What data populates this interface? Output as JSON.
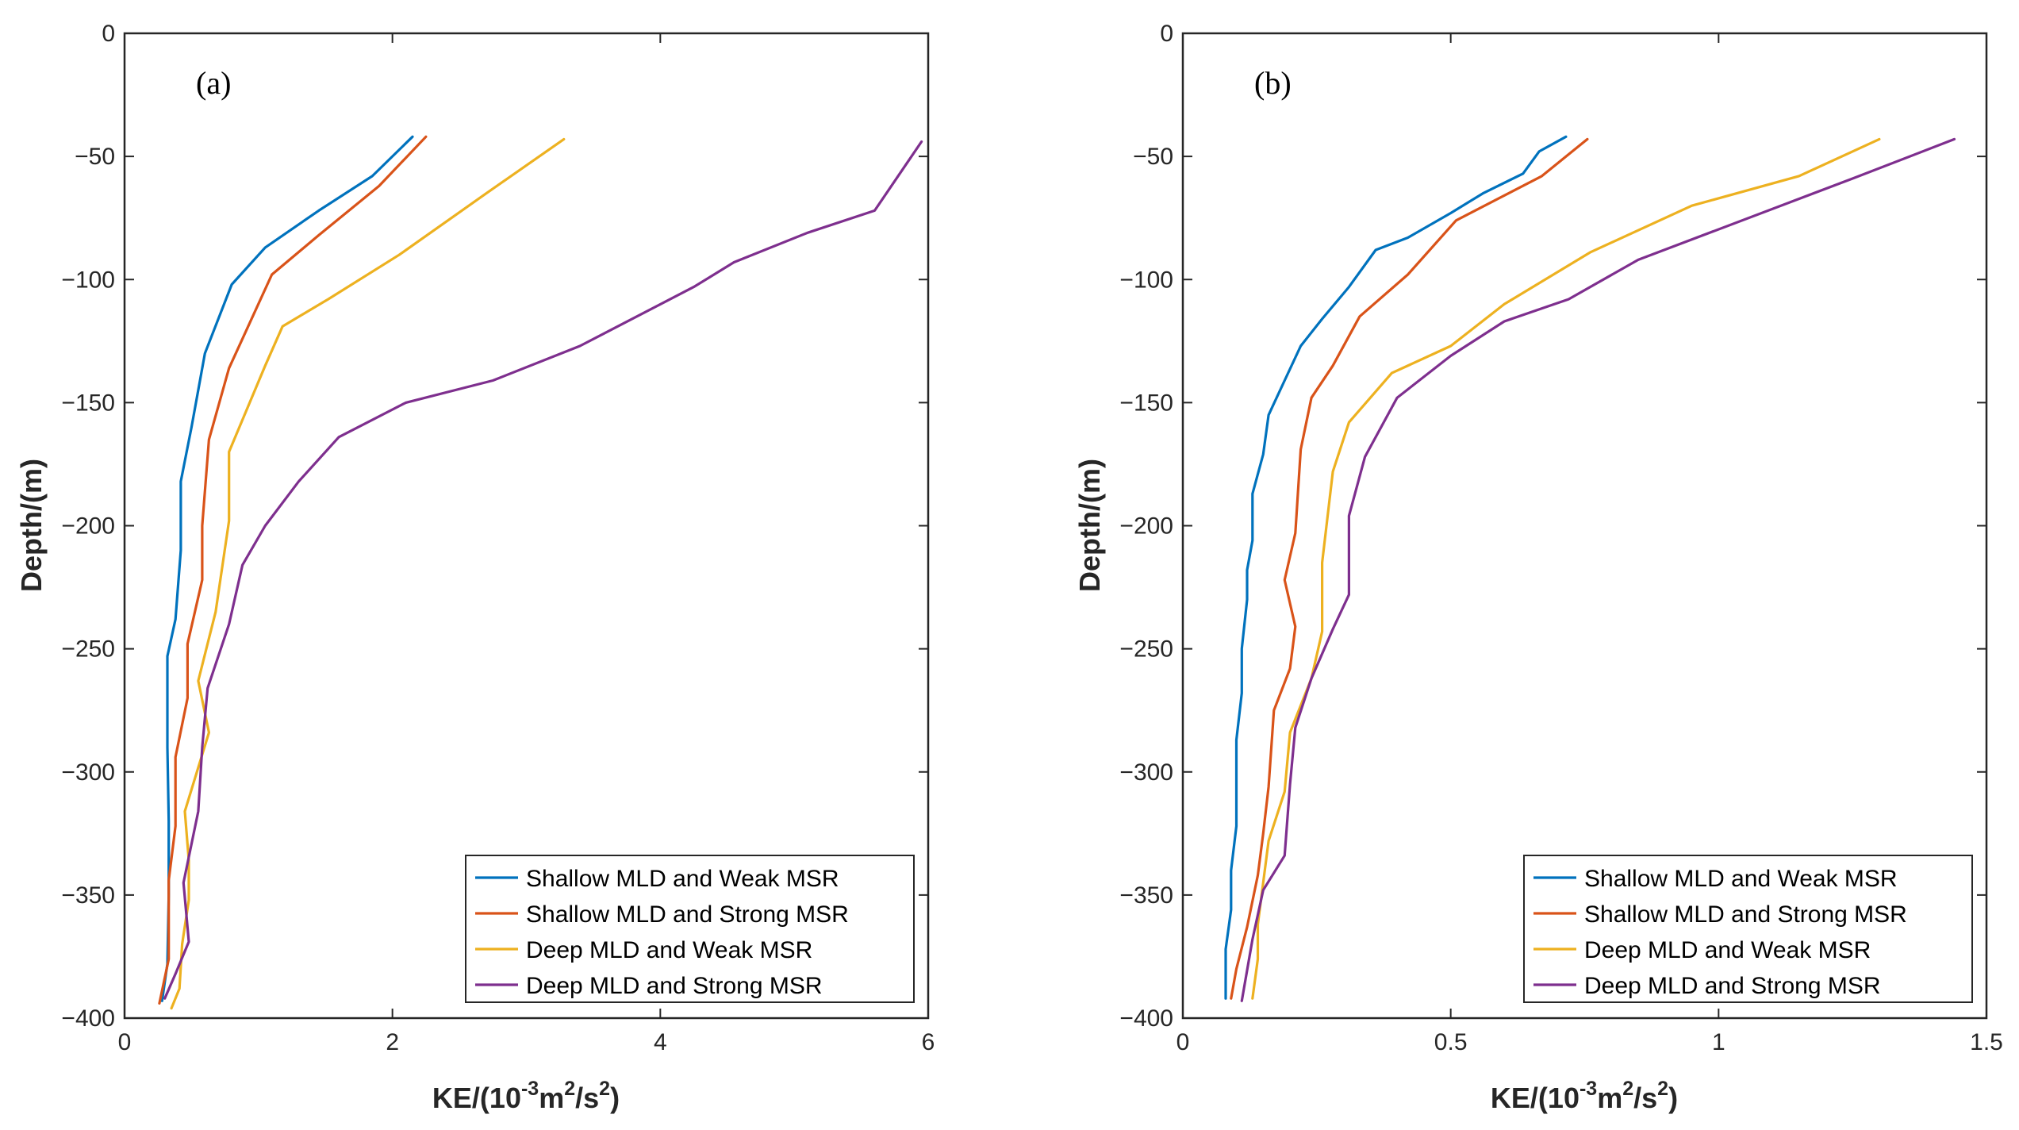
{
  "chart_data": [
    {
      "type": "line",
      "panel_label": "(a)",
      "xlabel": {
        "base": "KE/(10",
        "exp1": "-3",
        "mid": "m",
        "exp2": "2",
        "mid2": "/s",
        "exp3": "2",
        "end": ")"
      },
      "ylabel": "Depth/(m)",
      "xlim": [
        0,
        6
      ],
      "ylim": [
        -400,
        0
      ],
      "xticks": [
        0,
        2,
        4,
        6
      ],
      "xtick_labels": [
        "0",
        "2",
        "4",
        "6"
      ],
      "yticks": [
        0,
        -50,
        -100,
        -150,
        -200,
        -250,
        -300,
        -350,
        -400
      ],
      "ytick_labels": [
        "0",
        "−50",
        "−100",
        "−150",
        "−200",
        "−250",
        "−300",
        "−350",
        "−400"
      ],
      "legend_position": "bottom-right",
      "series": [
        {
          "name": "Shallow MLD and Weak MSR",
          "color": "#0072BD",
          "points": [
            [
              2.15,
              -42
            ],
            [
              1.85,
              -58
            ],
            [
              1.45,
              -72
            ],
            [
              1.05,
              -87
            ],
            [
              0.8,
              -102
            ],
            [
              0.6,
              -130
            ],
            [
              0.5,
              -160
            ],
            [
              0.42,
              -182
            ],
            [
              0.42,
              -210
            ],
            [
              0.38,
              -238
            ],
            [
              0.32,
              -253
            ],
            [
              0.32,
              -290
            ],
            [
              0.33,
              -320
            ],
            [
              0.33,
              -350
            ],
            [
              0.32,
              -378
            ],
            [
              0.28,
              -393
            ]
          ]
        },
        {
          "name": "Shallow MLD and Strong MSR",
          "color": "#D95319",
          "points": [
            [
              2.25,
              -42
            ],
            [
              1.9,
              -62
            ],
            [
              1.45,
              -82
            ],
            [
              1.1,
              -98
            ],
            [
              0.78,
              -136
            ],
            [
              0.63,
              -165
            ],
            [
              0.58,
              -200
            ],
            [
              0.58,
              -222
            ],
            [
              0.47,
              -248
            ],
            [
              0.47,
              -270
            ],
            [
              0.38,
              -294
            ],
            [
              0.38,
              -322
            ],
            [
              0.33,
              -344
            ],
            [
              0.33,
              -376
            ],
            [
              0.26,
              -394
            ]
          ]
        },
        {
          "name": "Deep MLD and Weak MSR",
          "color": "#EDB120",
          "points": [
            [
              3.28,
              -43
            ],
            [
              2.7,
              -65
            ],
            [
              2.05,
              -90
            ],
            [
              1.52,
              -108
            ],
            [
              1.18,
              -119
            ],
            [
              1.05,
              -135
            ],
            [
              0.78,
              -170
            ],
            [
              0.78,
              -198
            ],
            [
              0.68,
              -235
            ],
            [
              0.55,
              -263
            ],
            [
              0.63,
              -284
            ],
            [
              0.45,
              -316
            ],
            [
              0.48,
              -336
            ],
            [
              0.48,
              -352
            ],
            [
              0.43,
              -370
            ],
            [
              0.41,
              -388
            ],
            [
              0.35,
              -396
            ]
          ]
        },
        {
          "name": "Deep MLD and Strong MSR",
          "color": "#7E2F8E",
          "points": [
            [
              5.95,
              -44
            ],
            [
              5.6,
              -72
            ],
            [
              5.1,
              -81
            ],
            [
              4.55,
              -93
            ],
            [
              4.25,
              -103
            ],
            [
              3.4,
              -127
            ],
            [
              2.75,
              -141
            ],
            [
              2.1,
              -150
            ],
            [
              1.6,
              -164
            ],
            [
              1.3,
              -182
            ],
            [
              1.05,
              -200
            ],
            [
              0.88,
              -216
            ],
            [
              0.78,
              -240
            ],
            [
              0.62,
              -266
            ],
            [
              0.58,
              -290
            ],
            [
              0.55,
              -316
            ],
            [
              0.44,
              -345
            ],
            [
              0.48,
              -369
            ],
            [
              0.38,
              -382
            ],
            [
              0.3,
              -392
            ]
          ]
        }
      ]
    },
    {
      "type": "line",
      "panel_label": "(b)",
      "xlabel": {
        "base": "KE/(10",
        "exp1": "-3",
        "mid": "m",
        "exp2": "2",
        "mid2": "/s",
        "exp3": "2",
        "end": ")"
      },
      "ylabel": "Depth/(m)",
      "xlim": [
        0,
        1.5
      ],
      "ylim": [
        -400,
        0
      ],
      "xticks": [
        0,
        0.5,
        1,
        1.5
      ],
      "xtick_labels": [
        "0",
        "0.5",
        "1",
        "1.5"
      ],
      "yticks": [
        0,
        -50,
        -100,
        -150,
        -200,
        -250,
        -300,
        -350,
        -400
      ],
      "ytick_labels": [
        "0",
        "−50",
        "−100",
        "−150",
        "−200",
        "−250",
        "−300",
        "−350",
        "−400"
      ],
      "legend_position": "bottom-right",
      "series": [
        {
          "name": "Shallow MLD and Weak MSR",
          "color": "#0072BD",
          "points": [
            [
              0.715,
              -42
            ],
            [
              0.665,
              -48
            ],
            [
              0.635,
              -57
            ],
            [
              0.56,
              -65
            ],
            [
              0.5,
              -73
            ],
            [
              0.42,
              -83
            ],
            [
              0.36,
              -88
            ],
            [
              0.31,
              -103
            ],
            [
              0.26,
              -116
            ],
            [
              0.22,
              -127
            ],
            [
              0.19,
              -141
            ],
            [
              0.16,
              -155
            ],
            [
              0.15,
              -171
            ],
            [
              0.13,
              -187
            ],
            [
              0.13,
              -206
            ],
            [
              0.12,
              -218
            ],
            [
              0.12,
              -230
            ],
            [
              0.11,
              -250
            ],
            [
              0.11,
              -268
            ],
            [
              0.1,
              -287
            ],
            [
              0.1,
              -322
            ],
            [
              0.09,
              -340
            ],
            [
              0.09,
              -356
            ],
            [
              0.08,
              -372
            ],
            [
              0.08,
              -392
            ]
          ]
        },
        {
          "name": "Shallow MLD and Strong MSR",
          "color": "#D95319",
          "points": [
            [
              0.755,
              -43
            ],
            [
              0.67,
              -58
            ],
            [
              0.51,
              -76
            ],
            [
              0.42,
              -98
            ],
            [
              0.33,
              -115
            ],
            [
              0.28,
              -135
            ],
            [
              0.24,
              -148
            ],
            [
              0.22,
              -169
            ],
            [
              0.21,
              -203
            ],
            [
              0.19,
              -222
            ],
            [
              0.21,
              -241
            ],
            [
              0.2,
              -258
            ],
            [
              0.17,
              -275
            ],
            [
              0.16,
              -306
            ],
            [
              0.15,
              -325
            ],
            [
              0.14,
              -342
            ],
            [
              0.12,
              -363
            ],
            [
              0.1,
              -380
            ],
            [
              0.09,
              -392
            ]
          ]
        },
        {
          "name": "Deep MLD and Weak MSR",
          "color": "#EDB120",
          "points": [
            [
              1.3,
              -43
            ],
            [
              1.15,
              -58
            ],
            [
              0.95,
              -70
            ],
            [
              0.76,
              -89
            ],
            [
              0.6,
              -110
            ],
            [
              0.5,
              -127
            ],
            [
              0.39,
              -138
            ],
            [
              0.31,
              -158
            ],
            [
              0.28,
              -178
            ],
            [
              0.26,
              -215
            ],
            [
              0.26,
              -243
            ],
            [
              0.24,
              -262
            ],
            [
              0.2,
              -284
            ],
            [
              0.19,
              -308
            ],
            [
              0.16,
              -328
            ],
            [
              0.14,
              -362
            ],
            [
              0.14,
              -376
            ],
            [
              0.13,
              -392
            ]
          ]
        },
        {
          "name": "Deep MLD and Strong MSR",
          "color": "#7E2F8E",
          "points": [
            [
              1.44,
              -43
            ],
            [
              1.25,
              -59
            ],
            [
              0.85,
              -92
            ],
            [
              0.72,
              -108
            ],
            [
              0.6,
              -117
            ],
            [
              0.5,
              -131
            ],
            [
              0.4,
              -148
            ],
            [
              0.34,
              -172
            ],
            [
              0.31,
              -196
            ],
            [
              0.31,
              -228
            ],
            [
              0.28,
              -242
            ],
            [
              0.24,
              -262
            ],
            [
              0.21,
              -282
            ],
            [
              0.2,
              -305
            ],
            [
              0.19,
              -334
            ],
            [
              0.15,
              -348
            ],
            [
              0.13,
              -368
            ],
            [
              0.11,
              -393
            ]
          ]
        }
      ]
    }
  ]
}
